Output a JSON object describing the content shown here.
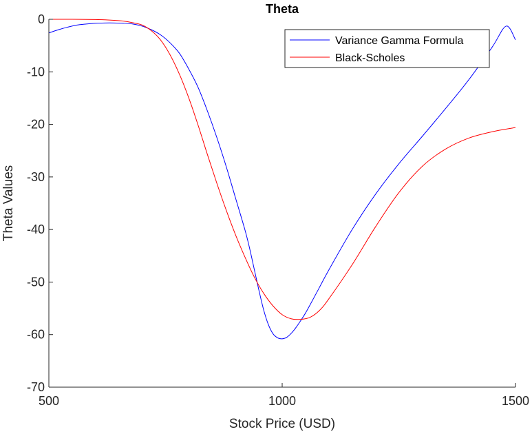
{
  "chart_data": {
    "type": "line",
    "title": "Theta",
    "xlabel": "Stock Price (USD)",
    "ylabel": "Theta Values",
    "xlim": [
      500,
      1500
    ],
    "ylim": [
      -70,
      0
    ],
    "xticks": [
      500,
      1000,
      1500
    ],
    "yticks": [
      0,
      -10,
      -20,
      -30,
      -40,
      -50,
      -60,
      -70
    ],
    "grid": false,
    "legend_position": "top-right",
    "series": [
      {
        "name": "Variance Gamma Formula",
        "color": "#0000ff",
        "x": [
          500,
          520,
          540,
          560,
          580,
          600,
          620,
          640,
          660,
          680,
          700,
          720,
          740,
          760,
          780,
          800,
          820,
          840,
          860,
          880,
          900,
          920,
          930,
          940,
          950,
          960,
          970,
          980,
          990,
          1000,
          1010,
          1020,
          1030,
          1040,
          1050,
          1060,
          1080,
          1100,
          1150,
          1200,
          1250,
          1300,
          1350,
          1400,
          1450,
          1480,
          1500
        ],
        "y": [
          -2.6,
          -2.0,
          -1.5,
          -1.1,
          -0.9,
          -0.75,
          -0.7,
          -0.7,
          -0.75,
          -0.9,
          -1.3,
          -2.0,
          -3.0,
          -4.5,
          -6.5,
          -9.5,
          -13.0,
          -17.5,
          -22.5,
          -28.0,
          -34.0,
          -40.0,
          -43.5,
          -47.5,
          -51.5,
          -55.2,
          -58.0,
          -59.8,
          -60.6,
          -60.8,
          -60.5,
          -59.7,
          -58.6,
          -57.3,
          -55.9,
          -54.3,
          -51.0,
          -47.7,
          -40.0,
          -33.3,
          -27.5,
          -22.3,
          -17.0,
          -11.5,
          -5.3,
          -1.3,
          -3.9
        ]
      },
      {
        "name": "Black-Scholes",
        "color": "#ff0000",
        "x": [
          500,
          550,
          600,
          620,
          640,
          660,
          680,
          700,
          720,
          740,
          760,
          780,
          800,
          820,
          840,
          860,
          880,
          900,
          920,
          940,
          960,
          980,
          1000,
          1020,
          1040,
          1060,
          1080,
          1100,
          1150,
          1200,
          1250,
          1300,
          1350,
          1400,
          1450,
          1500
        ],
        "y": [
          0.0,
          0.0,
          -0.05,
          -0.1,
          -0.2,
          -0.35,
          -0.65,
          -1.1,
          -2.2,
          -4.0,
          -6.8,
          -10.5,
          -15.0,
          -20.2,
          -25.8,
          -31.2,
          -36.3,
          -41.0,
          -45.2,
          -49.0,
          -52.1,
          -54.5,
          -56.2,
          -57.0,
          -57.1,
          -56.7,
          -55.4,
          -53.2,
          -46.7,
          -39.5,
          -33.0,
          -28.0,
          -24.7,
          -22.6,
          -21.4,
          -20.6
        ]
      }
    ]
  }
}
